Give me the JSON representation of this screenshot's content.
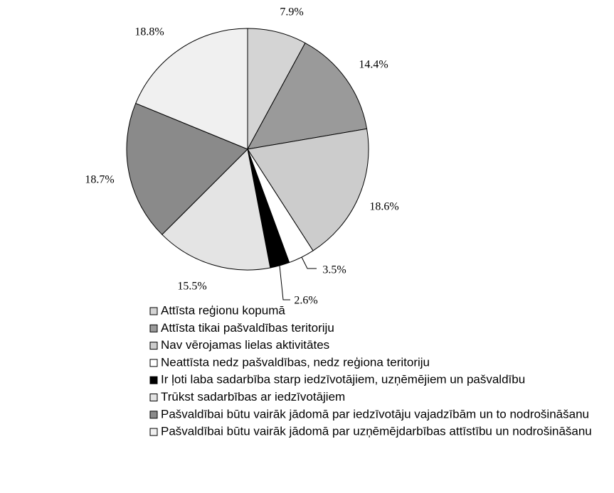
{
  "chart_data": {
    "type": "pie",
    "categories": [
      "Attīsta reģionu kopumā",
      "Attīsta tikai pašvaldības teritoriju",
      "Nav vērojamas lielas aktivitātes",
      "Neattīsta nedz pašvaldības, nedz reģiona teritoriju",
      "Ir ļoti laba sadarbība starp iedzīvotājiem, uzņēmējiem un pašvaldību",
      "Trūkst sadarbības ar iedzīvotājiem",
      "Pašvaldībai būtu vairāk jādomā par iedzīvotāju vajadzībām un to nodrošināšanu",
      "Pašvaldībai būtu vairāk jādomā par uzņēmējdarbības attīstību un nodrošināšanu"
    ],
    "values": [
      7.9,
      14.4,
      18.6,
      3.5,
      2.6,
      15.5,
      18.7,
      18.8
    ],
    "value_labels": [
      "7.9%",
      "14.4%",
      "18.6%",
      "3.5%",
      "2.6%",
      "15.5%",
      "18.7%",
      "18.8%"
    ],
    "colors": [
      "#d4d4d4",
      "#9a9a9a",
      "#cccccc",
      "#ffffff",
      "#000000",
      "#e4e4e4",
      "#8a8a8a",
      "#f0f0f0"
    ]
  }
}
